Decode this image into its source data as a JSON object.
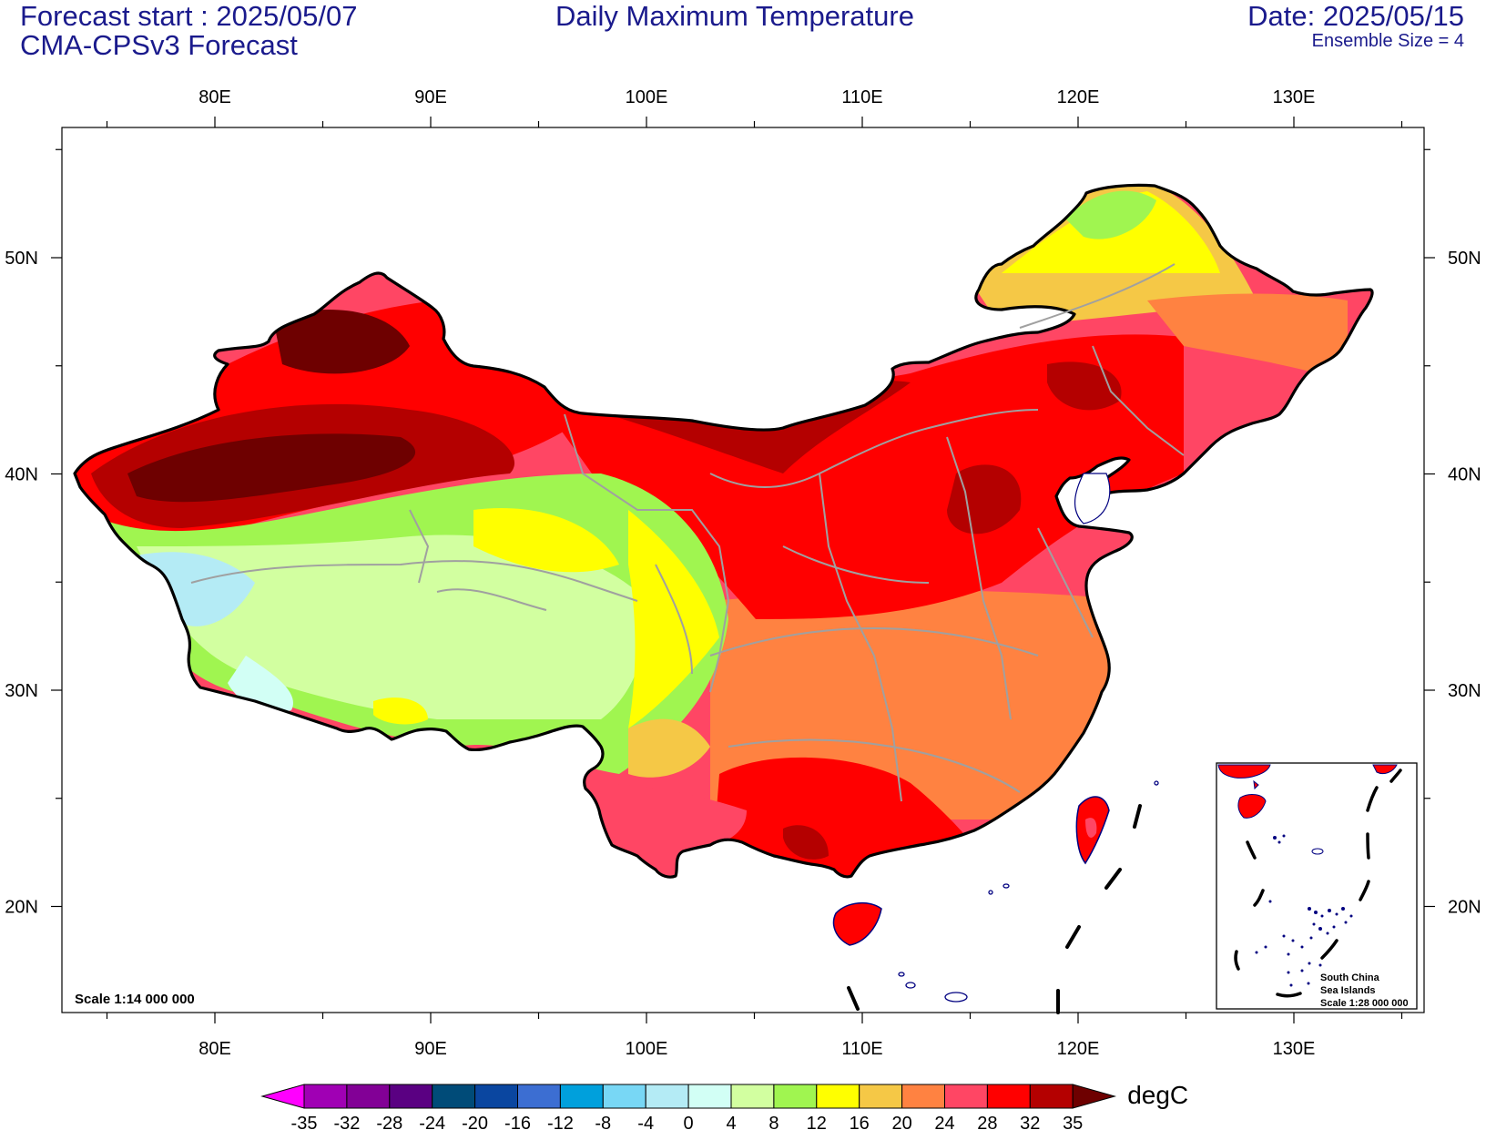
{
  "header": {
    "forecast_start": "Forecast start : 2025/05/07",
    "model": "CMA-CPSv3 Forecast",
    "title": "Daily Maximum Temperature",
    "date": "Date: 2025/05/15",
    "ensemble": "Ensemble Size = 4"
  },
  "map": {
    "lon_range": [
      73,
      136
    ],
    "lat_range": [
      15,
      56
    ],
    "lon_ticks": [
      "80E",
      "90E",
      "100E",
      "110E",
      "120E",
      "130E"
    ],
    "lat_ticks": [
      "50N",
      "40N",
      "30N",
      "20N"
    ],
    "scale_text": "Scale 1:14 000 000",
    "inset": {
      "line1": "South China",
      "line2": "Sea Islands",
      "line3": "Scale 1:28 000 000"
    }
  },
  "colorbar": {
    "unit": "degC",
    "levels": [
      "-35",
      "-32",
      "-28",
      "-24",
      "-20",
      "-16",
      "-12",
      "-8",
      "-4",
      "0",
      "4",
      "8",
      "12",
      "16",
      "20",
      "24",
      "28",
      "32",
      "35"
    ],
    "colors": [
      "#ff00ff",
      "#a000b4",
      "#820096",
      "#5a0082",
      "#004b78",
      "#0a46a0",
      "#3c6ed2",
      "#00a0dc",
      "#78d7f5",
      "#b4ebf5",
      "#d2fff5",
      "#d2ffa0",
      "#a0f550",
      "#ffff00",
      "#f5c846",
      "#ff8241",
      "#ff4664",
      "#ff0000",
      "#b40000",
      "#6e0000"
    ]
  }
}
